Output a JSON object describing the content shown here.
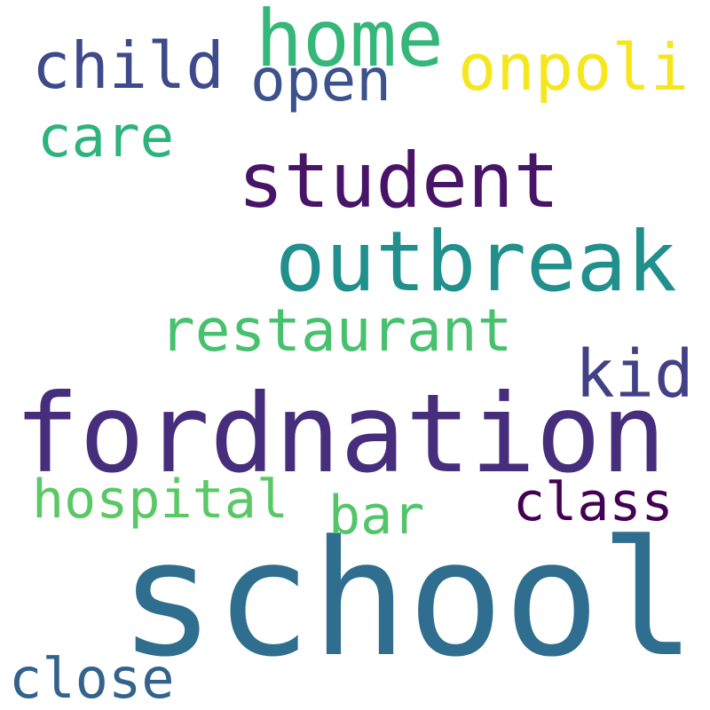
{
  "words": {
    "school": {
      "text": "school",
      "color": "#2f6e8e"
    },
    "fordnation": {
      "text": "fordnation",
      "color": "#472e7c"
    },
    "outbreak": {
      "text": "outbreak",
      "color": "#21908d"
    },
    "student": {
      "text": "student",
      "color": "#481467"
    },
    "home": {
      "text": "home",
      "color": "#35b779"
    },
    "child": {
      "text": "child",
      "color": "#3e4a89"
    },
    "open": {
      "text": "open",
      "color": "#3b528b"
    },
    "onpoli": {
      "text": "onpoli",
      "color": "#f5e61e"
    },
    "care": {
      "text": "care",
      "color": "#2eb37c"
    },
    "restaurant": {
      "text": "restaurant",
      "color": "#48c16e"
    },
    "kid": {
      "text": "kid",
      "color": "#424086"
    },
    "hospital": {
      "text": "hospital",
      "color": "#5ac864"
    },
    "bar": {
      "text": "bar",
      "color": "#52c569"
    },
    "class": {
      "text": "class",
      "color": "#440154"
    },
    "close": {
      "text": "close",
      "color": "#33638d"
    }
  }
}
